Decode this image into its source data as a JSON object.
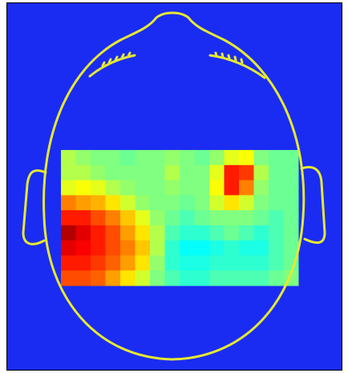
{
  "chart_data": {
    "type": "heatmap",
    "colormap": "jet",
    "zlim": [
      0,
      1
    ],
    "values": [
      [
        0.55,
        0.52,
        0.5,
        0.5,
        0.48,
        0.5,
        0.5,
        0.52,
        0.5,
        0.48,
        0.52,
        0.6,
        0.62,
        0.5,
        0.48,
        0.48
      ],
      [
        0.55,
        0.55,
        0.52,
        0.5,
        0.5,
        0.5,
        0.5,
        0.55,
        0.5,
        0.5,
        0.6,
        0.85,
        0.82,
        0.55,
        0.48,
        0.48
      ],
      [
        0.6,
        0.62,
        0.6,
        0.55,
        0.52,
        0.5,
        0.5,
        0.52,
        0.5,
        0.5,
        0.62,
        0.85,
        0.75,
        0.52,
        0.48,
        0.48
      ],
      [
        0.75,
        0.72,
        0.7,
        0.65,
        0.58,
        0.52,
        0.5,
        0.5,
        0.48,
        0.5,
        0.58,
        0.65,
        0.58,
        0.5,
        0.48,
        0.48
      ],
      [
        0.85,
        0.85,
        0.8,
        0.75,
        0.68,
        0.6,
        0.52,
        0.48,
        0.45,
        0.48,
        0.5,
        0.5,
        0.5,
        0.48,
        0.45,
        0.48
      ],
      [
        0.95,
        0.9,
        0.85,
        0.8,
        0.72,
        0.65,
        0.55,
        0.45,
        0.42,
        0.42,
        0.45,
        0.48,
        0.45,
        0.42,
        0.45,
        0.48
      ],
      [
        0.9,
        0.88,
        0.85,
        0.8,
        0.75,
        0.68,
        0.55,
        0.42,
        0.38,
        0.38,
        0.4,
        0.42,
        0.4,
        0.4,
        0.45,
        0.48
      ],
      [
        0.85,
        0.85,
        0.82,
        0.78,
        0.72,
        0.65,
        0.52,
        0.42,
        0.4,
        0.4,
        0.42,
        0.42,
        0.42,
        0.42,
        0.45,
        0.48
      ],
      [
        0.8,
        0.8,
        0.78,
        0.72,
        0.65,
        0.58,
        0.5,
        0.45,
        0.42,
        0.42,
        0.45,
        0.45,
        0.45,
        0.45,
        0.48,
        0.5
      ]
    ]
  }
}
